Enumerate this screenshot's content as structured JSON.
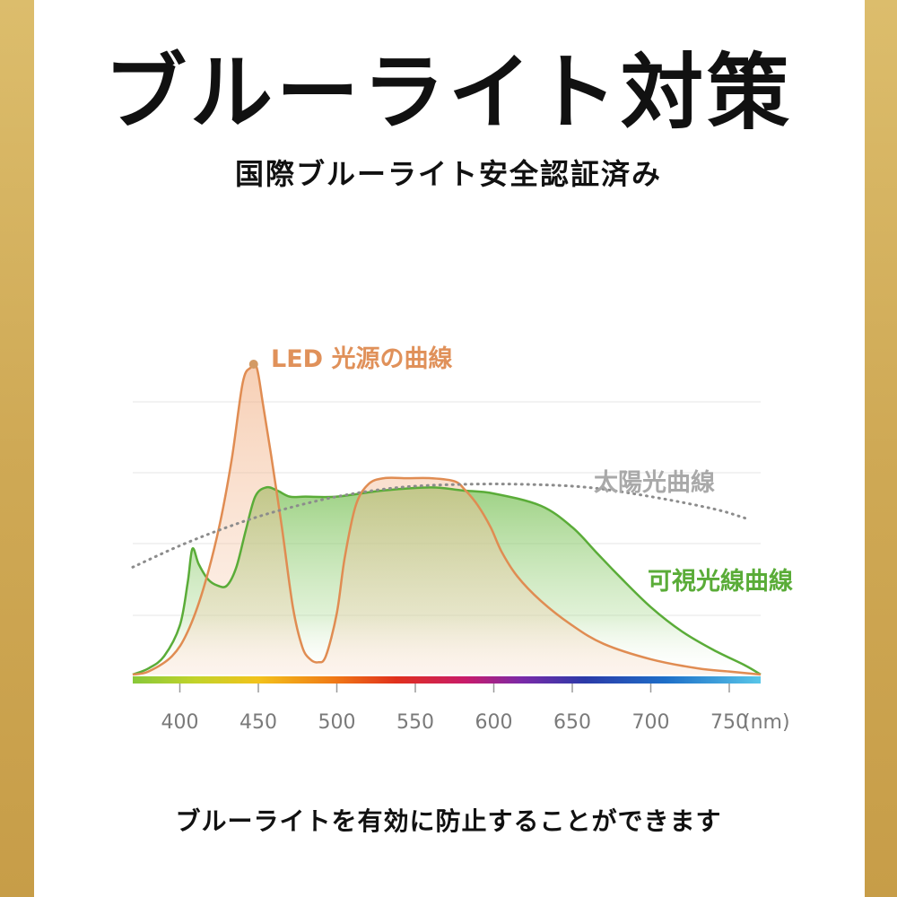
{
  "header": {
    "title": "ブルーライト対策",
    "subtitle": "国際ブルーライト安全認証済み"
  },
  "footer": {
    "text": "ブルーライトを有効に防止することができます"
  },
  "colors": {
    "led": "#e08c52",
    "led_label": "#e0915a",
    "visible": "#5aac38",
    "visible_label": "#5aac38",
    "sun": "#8c8c8c",
    "sun_label": "#a9a9a9",
    "frame_gold": "#cfa955"
  },
  "chart_data": {
    "type": "line",
    "x_unit": "(nm)",
    "xlim": [
      370,
      770
    ],
    "ylim": [
      0,
      100
    ],
    "x_ticks": [
      400,
      450,
      500,
      550,
      600,
      650,
      700,
      750
    ],
    "grid": true,
    "series": [
      {
        "name": "LED 光源の曲線",
        "color": "#e08c52",
        "fill": "area",
        "marker_at_peak": true,
        "x": [
          370,
          380,
          395,
          405,
          415,
          425,
          433,
          440,
          445,
          449,
          453,
          458,
          465,
          472,
          478,
          483,
          488,
          493,
          500,
          505,
          512,
          520,
          530,
          545,
          560,
          575,
          582,
          590,
          598,
          605,
          615,
          630,
          650,
          670,
          700,
          730,
          750,
          770
        ],
        "y": [
          0,
          1,
          6,
          14,
          28,
          48,
          70,
          95,
          100,
          100,
          88,
          72,
          48,
          22,
          9,
          5,
          4,
          6,
          20,
          38,
          55,
          62,
          64,
          64,
          64,
          63,
          60,
          55,
          48,
          40,
          32,
          24,
          16,
          10,
          5,
          2,
          1,
          0
        ]
      },
      {
        "name": "可視光線曲線",
        "color": "#5aac38",
        "fill": "gradient",
        "x": [
          370,
          380,
          390,
          400,
          405,
          408,
          412,
          418,
          424,
          430,
          436,
          442,
          448,
          455,
          462,
          470,
          480,
          500,
          530,
          560,
          580,
          600,
          630,
          650,
          665,
          680,
          700,
          720,
          740,
          760,
          770
        ],
        "y": [
          0,
          2,
          6,
          16,
          30,
          41,
          36,
          31,
          29,
          29,
          35,
          47,
          58,
          61,
          60,
          58,
          58,
          58,
          60,
          61,
          60,
          59,
          55,
          48,
          40,
          32,
          22,
          14,
          8,
          3,
          0
        ]
      },
      {
        "name": "太陽光曲線",
        "color": "#8c8c8c",
        "style": "dotted",
        "x": [
          370,
          400,
          430,
          460,
          500,
          540,
          580,
          620,
          660,
          700,
          740,
          760
        ],
        "y": [
          35,
          42,
          48,
          53,
          58,
          61,
          62,
          62,
          61,
          58,
          54,
          51
        ]
      }
    ]
  }
}
